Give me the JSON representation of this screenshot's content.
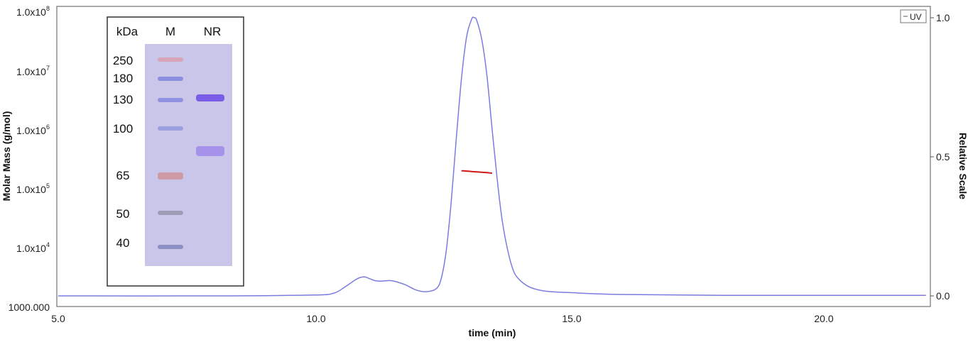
{
  "chart_data": {
    "type": "line",
    "xlabel": "time (min)",
    "ylabel_left": "Molar Mass (g/mol)",
    "ylabel_right": "Relative Scale",
    "xlim": [
      5.0,
      22.0
    ],
    "x_ticks": [
      "5.0",
      "10.0",
      "15.0",
      "20.0"
    ],
    "x_tick_values": [
      5,
      10,
      15,
      20
    ],
    "y_left_scale": "log",
    "y_left_lim": [
      1000,
      100000000
    ],
    "y_left_ticks": [
      {
        "value": 100000000,
        "mant": "1.0x10",
        "exp": "8"
      },
      {
        "value": 10000000,
        "mant": "1.0x10",
        "exp": "7"
      },
      {
        "value": 1000000,
        "mant": "1.0x10",
        "exp": "6"
      },
      {
        "value": 100000,
        "mant": "1.0x10",
        "exp": "5"
      },
      {
        "value": 10000,
        "mant": "1.0x10",
        "exp": "4"
      },
      {
        "value": 1000,
        "mant": "1000.000",
        "exp": ""
      }
    ],
    "y_right_lim": [
      -0.02,
      1.02
    ],
    "y_right_ticks": [
      {
        "value": 0.0,
        "label": "0.0"
      },
      {
        "value": 0.5,
        "label": "0.5"
      },
      {
        "value": 1.0,
        "label": "1.0"
      }
    ],
    "legend": {
      "position": "top-right",
      "entries": [
        "UV"
      ]
    },
    "series": [
      {
        "name": "UV",
        "axis": "right",
        "color": "#7b7be0",
        "x": [
          5.0,
          8.0,
          10.0,
          10.4,
          10.6,
          10.8,
          10.9,
          11.0,
          11.1,
          11.2,
          11.3,
          11.4,
          11.5,
          11.6,
          11.8,
          12.0,
          12.2,
          12.4,
          12.5,
          12.6,
          12.7,
          12.8,
          12.9,
          13.0,
          13.1,
          13.15,
          13.2,
          13.3,
          13.4,
          13.5,
          13.6,
          13.7,
          13.8,
          13.9,
          14.0,
          14.2,
          14.4,
          14.6,
          15.0,
          16.0,
          18.0,
          22.0
        ],
        "y": [
          0.0,
          0.0,
          0.003,
          0.01,
          0.03,
          0.055,
          0.065,
          0.068,
          0.062,
          0.055,
          0.053,
          0.054,
          0.055,
          0.052,
          0.04,
          0.022,
          0.015,
          0.025,
          0.06,
          0.16,
          0.34,
          0.57,
          0.78,
          0.93,
          0.995,
          1.0,
          0.99,
          0.92,
          0.79,
          0.6,
          0.42,
          0.27,
          0.17,
          0.1,
          0.065,
          0.035,
          0.022,
          0.016,
          0.012,
          0.005,
          0.002,
          0.002
        ]
      },
      {
        "name": "Molar Mass",
        "axis": "left",
        "color": "#d01818",
        "x": [
          12.9,
          13.0,
          13.1,
          13.2,
          13.3,
          13.4,
          13.5
        ],
        "y": [
          205000,
          202000,
          199000,
          196000,
          193000,
          190000,
          186000
        ]
      }
    ]
  },
  "inset": {
    "headers": {
      "kda": "kDa",
      "marker": "M",
      "sample": "NR"
    },
    "marker_labels": [
      "250",
      "180",
      "130",
      "100",
      "65",
      "50",
      "40"
    ],
    "gel_color": "#c9c6e9",
    "marker_colors": [
      "#d9a3b8",
      "#8b8fe0",
      "#8e92e0",
      "#9aa0dd",
      "#cf9aa7",
      "#9f9cb8",
      "#8d8fc4"
    ],
    "sample_band_colors": [
      "#7a5ce6",
      "#a692e8"
    ]
  }
}
